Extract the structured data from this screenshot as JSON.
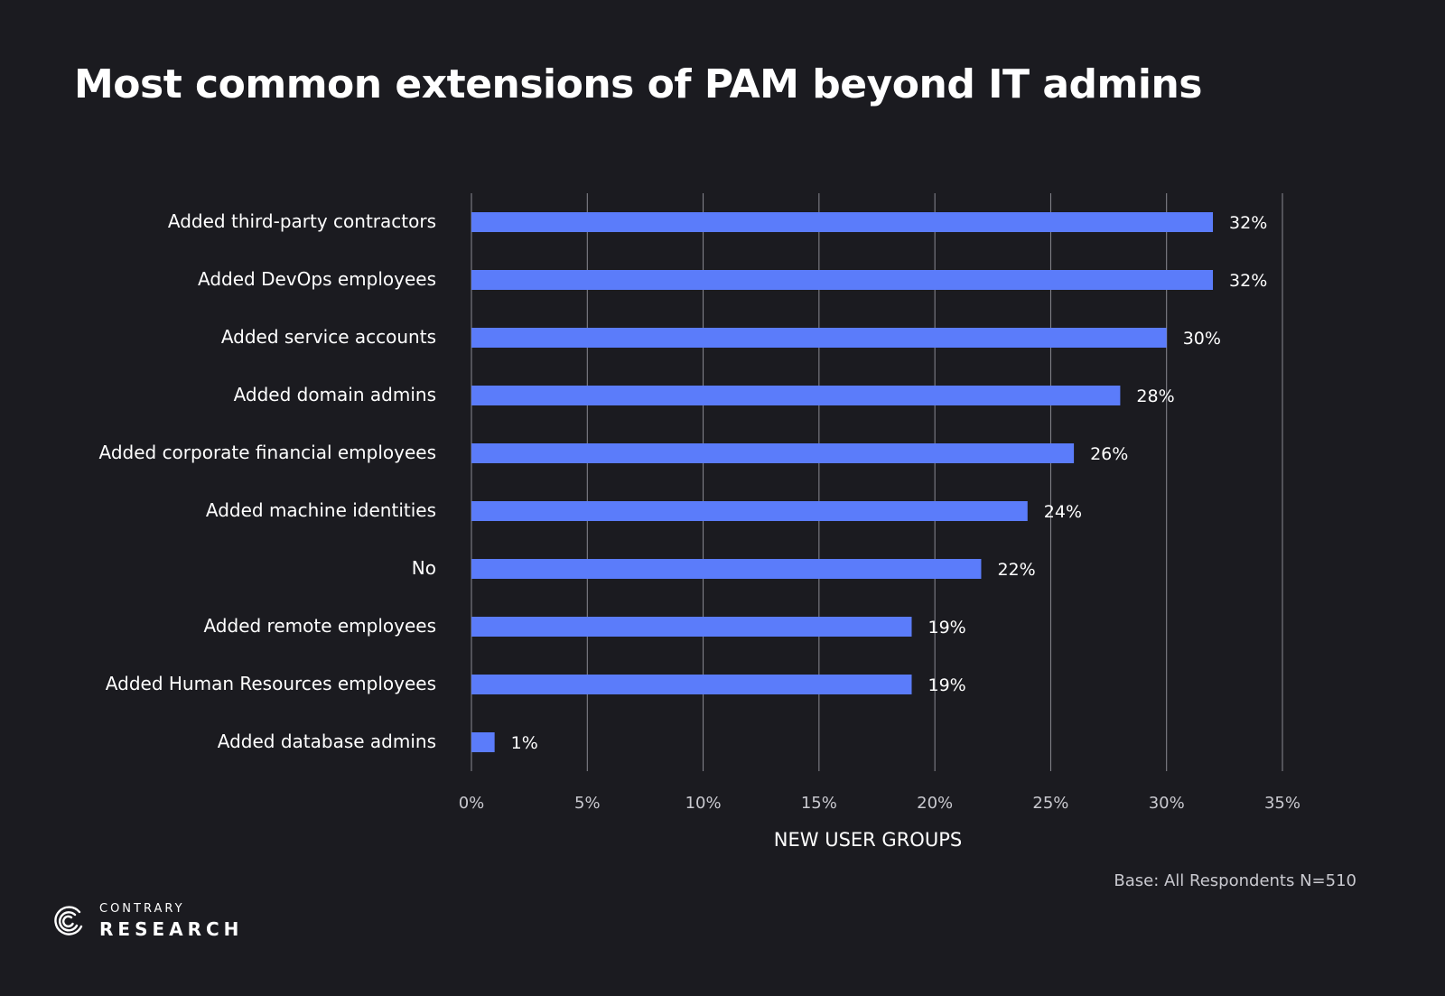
{
  "title": "Most common extensions of PAM beyond IT admins",
  "footnote": "Base: All Respondents N=510",
  "brand": {
    "top": "CONTRARY",
    "bottom": "RESEARCH"
  },
  "colors": {
    "background": "#1b1b20",
    "bar": "#5b7cfa",
    "grid": "#8a8a92",
    "text": "#ffffff",
    "muted": "#c9c9cf"
  },
  "chart_data": {
    "type": "bar",
    "orientation": "horizontal",
    "categories": [
      "Added third-party contractors",
      "Added DevOps employees",
      "Added service accounts",
      "Added domain admins",
      "Added corporate financial employees",
      "Added machine identities",
      "No",
      "Added remote employees",
      "Added Human Resources employees",
      "Added database admins"
    ],
    "values": [
      32,
      32,
      30,
      28,
      26,
      24,
      22,
      19,
      19,
      1
    ],
    "value_labels": [
      "32%",
      "32%",
      "30%",
      "28%",
      "26%",
      "24%",
      "22%",
      "19%",
      "19%",
      "1%"
    ],
    "xlabel": "NEW USER GROUPS",
    "xlim": [
      0,
      35
    ],
    "xticks": [
      0,
      5,
      10,
      15,
      20,
      25,
      30,
      35
    ],
    "xtick_labels": [
      "0%",
      "5%",
      "10%",
      "15%",
      "20%",
      "25%",
      "30%",
      "35%"
    ],
    "grid": "vertical",
    "legend": "none"
  }
}
